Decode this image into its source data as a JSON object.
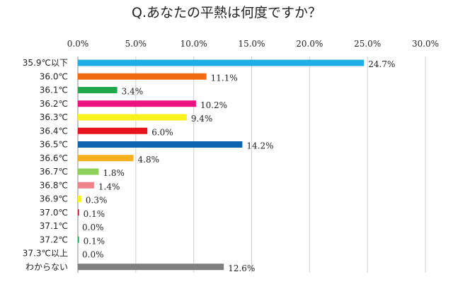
{
  "chart_data": {
    "type": "bar",
    "orientation": "horizontal",
    "title": "Q.あなたの平熱は何度ですか？",
    "xlim": [
      0,
      30
    ],
    "x_ticks": [
      "0.0%",
      "5.0%",
      "10.0%",
      "15.0%",
      "20.0%",
      "25.0%",
      "30.0%"
    ],
    "x_tick_values": [
      0,
      5,
      10,
      15,
      20,
      25,
      30
    ],
    "grid": true,
    "categories": [
      "35.9℃以下",
      "36.0℃",
      "36.1℃",
      "36.2℃",
      "36.3℃",
      "36.4℃",
      "36.5℃",
      "36.6℃",
      "36.7℃",
      "36.8℃",
      "36.9℃",
      "37.0℃",
      "37.1℃",
      "37.2℃",
      "37.3℃以上",
      "わからない"
    ],
    "values": [
      24.7,
      11.1,
      3.4,
      10.2,
      9.4,
      6.0,
      14.2,
      4.8,
      1.8,
      1.4,
      0.3,
      0.1,
      0.0,
      0.1,
      0.0,
      12.6
    ],
    "value_labels": [
      "24.7%",
      "11.1%",
      "3.4%",
      "10.2%",
      "9.4%",
      "6.0%",
      "14.2%",
      "4.8%",
      "1.8%",
      "1.4%",
      "0.3%",
      "0.1%",
      "0.0%",
      "0.1%",
      "0.0%",
      "12.6%"
    ],
    "colors": [
      "#1EAEE5",
      "#F06A12",
      "#1FA84A",
      "#EC1380",
      "#F8F21E",
      "#E8141B",
      "#0C64B0",
      "#F6B01E",
      "#8ED15A",
      "#F0828A",
      "#F8F21E",
      "#C8102E",
      "#1FA84A",
      "#1FA84A",
      "#1FA84A",
      "#7F7F7F"
    ]
  }
}
